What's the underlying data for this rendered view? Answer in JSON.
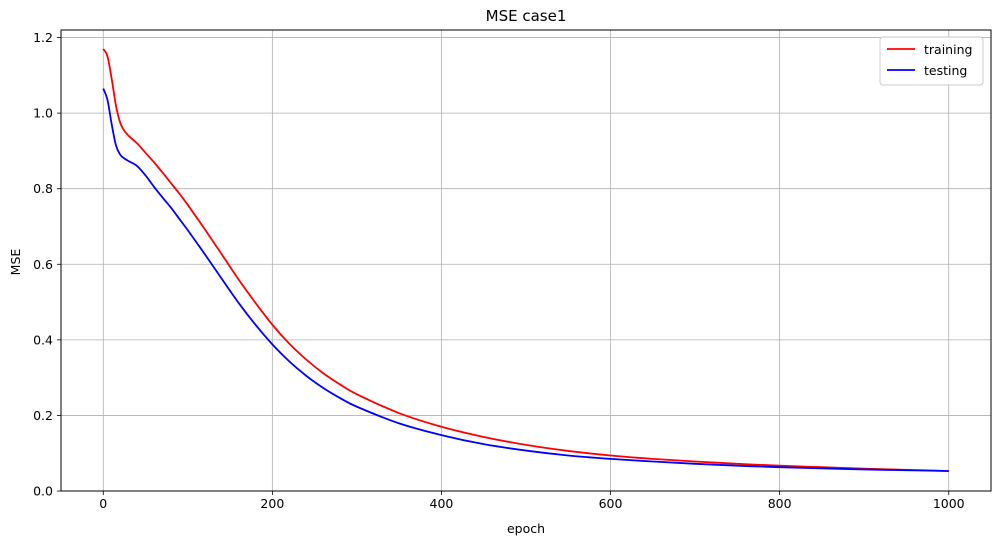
{
  "chart_data": {
    "type": "line",
    "title": "MSE case1",
    "xlabel": "epoch",
    "ylabel": "MSE",
    "xlim": [
      -50,
      1050
    ],
    "ylim": [
      0,
      1.22
    ],
    "xticks": [
      0,
      200,
      400,
      600,
      800,
      1000
    ],
    "xtick_labels": [
      "0",
      "200",
      "400",
      "600",
      "800",
      "1000"
    ],
    "yticks": [
      0.0,
      0.2,
      0.4,
      0.6,
      0.8,
      1.0,
      1.2
    ],
    "ytick_labels": [
      "0.0",
      "0.2",
      "0.4",
      "0.6",
      "0.8",
      "1.0",
      "1.2"
    ],
    "grid": true,
    "legend_position": "top-right",
    "series": [
      {
        "name": "training",
        "color": "#ff0000",
        "x": [
          0,
          5,
          10,
          15,
          20,
          25,
          30,
          40,
          50,
          60,
          70,
          80,
          90,
          100,
          120,
          140,
          160,
          180,
          200,
          220,
          240,
          260,
          280,
          300,
          350,
          400,
          450,
          500,
          550,
          600,
          650,
          700,
          750,
          800,
          850,
          900,
          950,
          1000
        ],
        "y": [
          1.17,
          1.15,
          1.09,
          1.02,
          0.975,
          0.953,
          0.94,
          0.92,
          0.895,
          0.87,
          0.843,
          0.815,
          0.787,
          0.757,
          0.693,
          0.627,
          0.56,
          0.498,
          0.44,
          0.39,
          0.348,
          0.312,
          0.282,
          0.256,
          0.206,
          0.17,
          0.143,
          0.122,
          0.106,
          0.094,
          0.085,
          0.078,
          0.072,
          0.067,
          0.063,
          0.059,
          0.056,
          0.053
        ]
      },
      {
        "name": "testing",
        "color": "#0000ff",
        "x": [
          0,
          5,
          10,
          15,
          20,
          25,
          30,
          40,
          50,
          60,
          70,
          80,
          90,
          100,
          120,
          140,
          160,
          180,
          200,
          220,
          240,
          260,
          280,
          300,
          350,
          400,
          450,
          500,
          550,
          600,
          650,
          700,
          750,
          800,
          850,
          900,
          950,
          1000
        ],
        "y": [
          1.065,
          1.035,
          0.97,
          0.915,
          0.89,
          0.88,
          0.873,
          0.86,
          0.835,
          0.805,
          0.777,
          0.75,
          0.72,
          0.69,
          0.627,
          0.562,
          0.498,
          0.44,
          0.388,
          0.343,
          0.305,
          0.273,
          0.246,
          0.223,
          0.179,
          0.148,
          0.124,
          0.107,
          0.094,
          0.085,
          0.078,
          0.072,
          0.067,
          0.063,
          0.06,
          0.057,
          0.055,
          0.053
        ]
      }
    ]
  }
}
